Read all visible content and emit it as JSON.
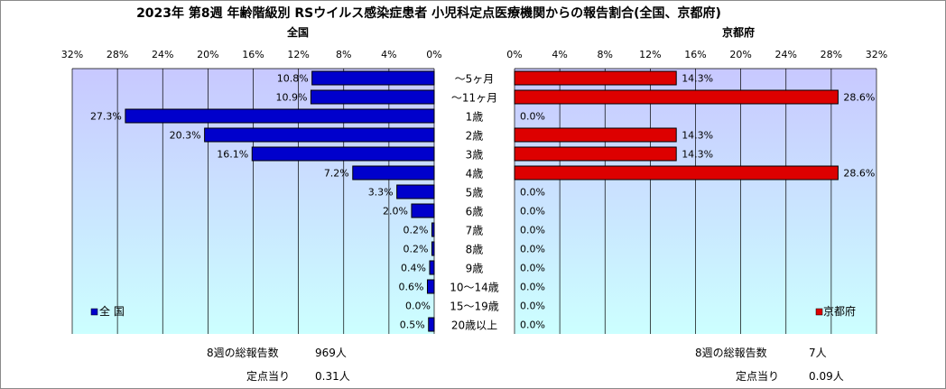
{
  "title": "2023年 第8週 年齢階級別 RSウイルス感染症患者 小児科定点医療機関からの報告割合(全国、京都府)",
  "panels": {
    "left_title": "全国",
    "right_title": "京都府"
  },
  "legend": {
    "left": "全 国",
    "right": "京都府"
  },
  "footer": {
    "left_total_label": "8週の総報告数",
    "left_total_value": "969人",
    "left_per_label": "定点当り",
    "left_per_value": "0.31人",
    "right_total_label": "8週の総報告数",
    "right_total_value": "7人",
    "right_per_label": "定点当り",
    "right_per_value": "0.09人"
  },
  "colors": {
    "national_bar": "#0000cc",
    "kyoto_bar": "#dd0000",
    "plot_bg_top": "#c8c8ff",
    "plot_bg_bottom": "#ccffff"
  },
  "chart_data": {
    "type": "bar",
    "orientation": "horizontal",
    "categories": [
      "~5ヶ月",
      "~11ヶ月",
      "1歳",
      "2歳",
      "3歳",
      "4歳",
      "5歳",
      "6歳",
      "7歳",
      "8歳",
      "9歳",
      "10~14歳",
      "15~19歳",
      "20歳以上"
    ],
    "category_labels": [
      "～5ヶ月",
      "～11ヶ月",
      "1歳",
      "2歳",
      "3歳",
      "4歳",
      "5歳",
      "6歳",
      "7歳",
      "8歳",
      "9歳",
      "10～14歳",
      "15～19歳",
      "20歳以上"
    ],
    "series": [
      {
        "name": "全 国",
        "values": [
          10.8,
          10.9,
          27.3,
          20.3,
          16.1,
          7.2,
          3.3,
          2.0,
          0.2,
          0.2,
          0.4,
          0.6,
          0.0,
          0.5
        ],
        "labels": [
          "10.8%",
          "10.9%",
          "27.3%",
          "20.3%",
          "16.1%",
          "7.2%",
          "3.3%",
          "2.0%",
          "0.2%",
          "0.2%",
          "0.4%",
          "0.6%",
          "0.0%",
          "0.5%"
        ]
      },
      {
        "name": "京都府",
        "values": [
          14.3,
          28.6,
          0.0,
          14.3,
          14.3,
          28.6,
          0.0,
          0.0,
          0.0,
          0.0,
          0.0,
          0.0,
          0.0,
          0.0
        ],
        "labels": [
          "14.3%",
          "28.6%",
          "0.0%",
          "14.3%",
          "14.3%",
          "28.6%",
          "0.0%",
          "0.0%",
          "0.0%",
          "0.0%",
          "0.0%",
          "0.0%",
          "0.0%",
          "0.0%"
        ]
      }
    ],
    "xlim": [
      0,
      32
    ],
    "x_ticks": [
      "0%",
      "4%",
      "8%",
      "12%",
      "16%",
      "20%",
      "24%",
      "28%",
      "32%"
    ],
    "grid": true,
    "legend_position": "bottom-left / bottom-right"
  }
}
